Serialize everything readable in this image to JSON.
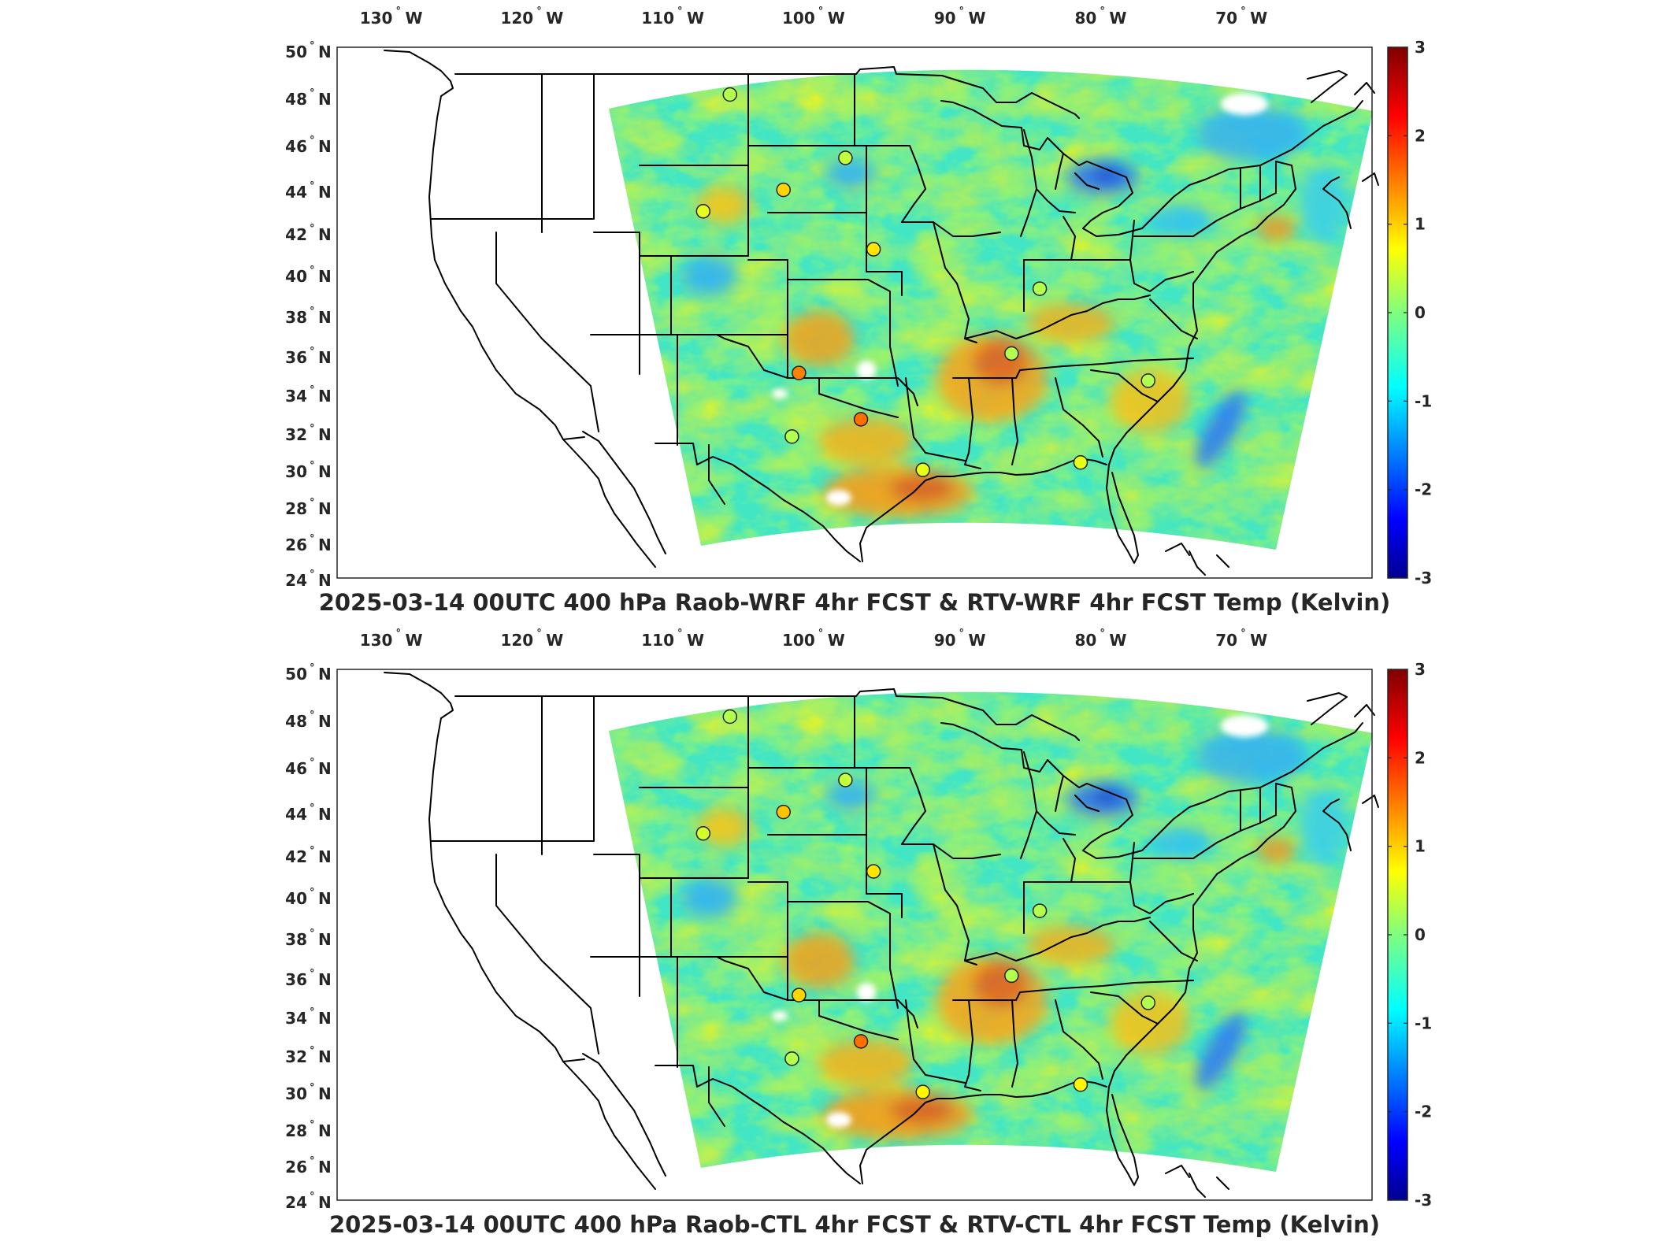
{
  "panels": [
    {
      "title": "2025-03-14 00UTC 400 hPa Raob-WRF 4hr FCST & RTV-WRF 4hr FCST Temp (Kelvin)",
      "lon_ticks": [
        {
          "num": "130",
          "hemi": "W"
        },
        {
          "num": "120",
          "hemi": "W"
        },
        {
          "num": "110",
          "hemi": "W"
        },
        {
          "num": "100",
          "hemi": "W"
        },
        {
          "num": "90",
          "hemi": "W"
        },
        {
          "num": "80",
          "hemi": "W"
        },
        {
          "num": "70",
          "hemi": "W"
        }
      ],
      "lat_ticks": [
        {
          "num": "50",
          "hemi": "N"
        },
        {
          "num": "48",
          "hemi": "N"
        },
        {
          "num": "46",
          "hemi": "N"
        },
        {
          "num": "44",
          "hemi": "N"
        },
        {
          "num": "42",
          "hemi": "N"
        },
        {
          "num": "40",
          "hemi": "N"
        },
        {
          "num": "38",
          "hemi": "N"
        },
        {
          "num": "36",
          "hemi": "N"
        },
        {
          "num": "34",
          "hemi": "N"
        },
        {
          "num": "32",
          "hemi": "N"
        },
        {
          "num": "30",
          "hemi": "N"
        },
        {
          "num": "28",
          "hemi": "N"
        },
        {
          "num": "26",
          "hemi": "N"
        },
        {
          "num": "24",
          "hemi": "N"
        }
      ],
      "colorbar_ticks": [
        "3",
        "2",
        "1",
        "0",
        "-1",
        "-2",
        "-3"
      ],
      "colorbar_range": [
        -3,
        3
      ],
      "colormap": "jet",
      "raob_stations": [
        {
          "lon": -106.6,
          "lat": 48.2,
          "value": 0.3
        },
        {
          "lon": -98.4,
          "lat": 45.5,
          "value": 0.4
        },
        {
          "lon": -102.8,
          "lat": 44.1,
          "value": 1.0
        },
        {
          "lon": -108.5,
          "lat": 43.1,
          "value": 0.6
        },
        {
          "lon": -96.4,
          "lat": 41.3,
          "value": 0.9
        },
        {
          "lon": -84.6,
          "lat": 39.4,
          "value": 0.3
        },
        {
          "lon": -86.6,
          "lat": 36.2,
          "value": 0.3
        },
        {
          "lon": -101.7,
          "lat": 35.2,
          "value": 1.5
        },
        {
          "lon": -97.3,
          "lat": 32.8,
          "value": 1.6
        },
        {
          "lon": -102.2,
          "lat": 31.9,
          "value": 0.3
        },
        {
          "lon": -92.9,
          "lat": 30.1,
          "value": 0.6
        },
        {
          "lon": -81.7,
          "lat": 30.5,
          "value": 0.6
        },
        {
          "lon": -76.9,
          "lat": 34.8,
          "value": 0.3
        }
      ]
    },
    {
      "title": "2025-03-14 00UTC 400 hPa Raob-CTL 4hr FCST & RTV-CTL 4hr FCST Temp (Kelvin)",
      "lon_ticks": [
        {
          "num": "130",
          "hemi": "W"
        },
        {
          "num": "120",
          "hemi": "W"
        },
        {
          "num": "110",
          "hemi": "W"
        },
        {
          "num": "100",
          "hemi": "W"
        },
        {
          "num": "90",
          "hemi": "W"
        },
        {
          "num": "80",
          "hemi": "W"
        },
        {
          "num": "70",
          "hemi": "W"
        }
      ],
      "lat_ticks": [
        {
          "num": "50",
          "hemi": "N"
        },
        {
          "num": "48",
          "hemi": "N"
        },
        {
          "num": "46",
          "hemi": "N"
        },
        {
          "num": "44",
          "hemi": "N"
        },
        {
          "num": "42",
          "hemi": "N"
        },
        {
          "num": "40",
          "hemi": "N"
        },
        {
          "num": "38",
          "hemi": "N"
        },
        {
          "num": "36",
          "hemi": "N"
        },
        {
          "num": "34",
          "hemi": "N"
        },
        {
          "num": "32",
          "hemi": "N"
        },
        {
          "num": "30",
          "hemi": "N"
        },
        {
          "num": "28",
          "hemi": "N"
        },
        {
          "num": "26",
          "hemi": "N"
        },
        {
          "num": "24",
          "hemi": "N"
        }
      ],
      "colorbar_ticks": [
        "3",
        "2",
        "1",
        "0",
        "-1",
        "-2",
        "-3"
      ],
      "colorbar_range": [
        -3,
        3
      ],
      "colormap": "jet",
      "raob_stations": [
        {
          "lon": -106.6,
          "lat": 48.2,
          "value": 0.3
        },
        {
          "lon": -98.4,
          "lat": 45.5,
          "value": 0.4
        },
        {
          "lon": -102.8,
          "lat": 44.1,
          "value": 1.1
        },
        {
          "lon": -108.5,
          "lat": 43.1,
          "value": 0.5
        },
        {
          "lon": -96.4,
          "lat": 41.3,
          "value": 0.9
        },
        {
          "lon": -84.6,
          "lat": 39.4,
          "value": 0.3
        },
        {
          "lon": -86.6,
          "lat": 36.2,
          "value": 0.3
        },
        {
          "lon": -101.7,
          "lat": 35.2,
          "value": 1.0
        },
        {
          "lon": -97.3,
          "lat": 32.8,
          "value": 1.6
        },
        {
          "lon": -102.2,
          "lat": 31.9,
          "value": 0.3
        },
        {
          "lon": -92.9,
          "lat": 30.1,
          "value": 0.8
        },
        {
          "lon": -81.7,
          "lat": 30.5,
          "value": 0.8
        },
        {
          "lon": -76.9,
          "lat": 34.8,
          "value": 0.3
        }
      ]
    }
  ]
}
